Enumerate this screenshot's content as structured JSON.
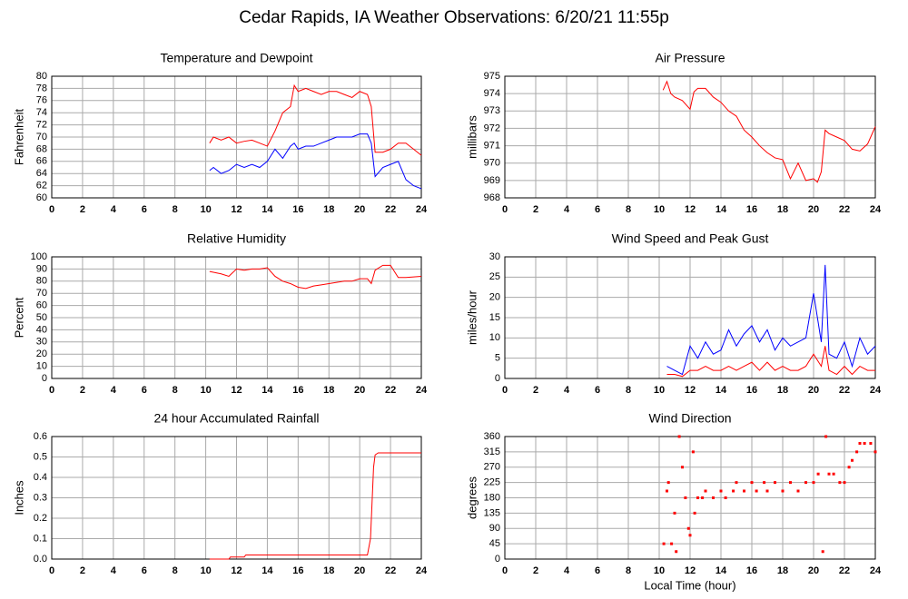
{
  "title": "Cedar Rapids, IA Weather Observations: 6/20/21 11:55p",
  "chart_data": [
    {
      "type": "line",
      "title": "Temperature and Dewpoint",
      "ylabel": "Fahrenheit",
      "xlim": [
        0,
        24
      ],
      "xticks": [
        0,
        2,
        4,
        6,
        8,
        10,
        12,
        14,
        16,
        18,
        20,
        22,
        24
      ],
      "ylim": [
        60,
        80
      ],
      "yticks": [
        60,
        62,
        64,
        66,
        68,
        70,
        72,
        74,
        76,
        78,
        80
      ],
      "grid": true,
      "x": [
        10.25,
        10.5,
        11,
        11.5,
        12,
        12.5,
        13,
        13.5,
        14,
        14.5,
        15,
        15.5,
        15.75,
        16,
        16.5,
        17,
        17.5,
        18,
        18.5,
        19,
        19.5,
        20,
        20.5,
        20.75,
        21,
        21.5,
        22,
        22.5,
        23,
        23.5,
        24
      ],
      "series": [
        {
          "color": "#ff0000",
          "values": [
            69,
            70,
            69.5,
            70,
            69,
            69.3,
            69.5,
            69,
            68.5,
            71,
            74,
            75,
            78.5,
            77.5,
            78,
            77.5,
            77,
            77.5,
            77.5,
            77,
            76.5,
            77.5,
            77,
            75,
            67.5,
            67.5,
            68,
            69,
            69,
            68,
            67
          ]
        },
        {
          "color": "#0000ff",
          "values": [
            64.5,
            65,
            64,
            64.5,
            65.5,
            65,
            65.5,
            65,
            66,
            68,
            66.5,
            68.5,
            69,
            68,
            68.5,
            68.5,
            69,
            69.5,
            70,
            70,
            70,
            70.5,
            70.5,
            69,
            63.5,
            65,
            65.5,
            66,
            63,
            62,
            61.5
          ]
        }
      ]
    },
    {
      "type": "line",
      "title": "Air Pressure",
      "ylabel": "millibars",
      "xlim": [
        0,
        24
      ],
      "xticks": [
        0,
        2,
        4,
        6,
        8,
        10,
        12,
        14,
        16,
        18,
        20,
        22,
        24
      ],
      "ylim": [
        968,
        975
      ],
      "yticks": [
        968,
        969,
        970,
        971,
        972,
        973,
        974,
        975
      ],
      "grid": true,
      "x": [
        10.25,
        10.5,
        10.75,
        11,
        11.5,
        12,
        12.25,
        12.5,
        13,
        13.5,
        14,
        14.5,
        15,
        15.5,
        16,
        16.5,
        17,
        17.5,
        18,
        18.5,
        19,
        19.5,
        20,
        20.25,
        20.5,
        20.75,
        21,
        21.5,
        22,
        22.5,
        23,
        23.5,
        24
      ],
      "series": [
        {
          "color": "#ff0000",
          "values": [
            974.2,
            974.7,
            974,
            973.8,
            973.6,
            973.1,
            974.1,
            974.3,
            974.3,
            973.8,
            973.5,
            973,
            972.7,
            971.9,
            971.5,
            971,
            970.6,
            970.3,
            970.2,
            969.1,
            970,
            969,
            969.1,
            968.9,
            969.5,
            971.9,
            971.7,
            971.5,
            971.3,
            970.8,
            970.7,
            971.1,
            972.1
          ]
        }
      ]
    },
    {
      "type": "line",
      "title": "Relative Humidity",
      "ylabel": "Percent",
      "xlim": [
        0,
        24
      ],
      "xticks": [
        0,
        2,
        4,
        6,
        8,
        10,
        12,
        14,
        16,
        18,
        20,
        22,
        24
      ],
      "ylim": [
        0,
        100
      ],
      "yticks": [
        0,
        10,
        20,
        30,
        40,
        50,
        60,
        70,
        80,
        90,
        100
      ],
      "grid": true,
      "x": [
        10.25,
        11,
        11.5,
        12,
        12.5,
        13,
        13.5,
        14,
        14.5,
        15,
        15.5,
        16,
        16.5,
        17,
        17.5,
        18,
        18.5,
        19,
        19.5,
        20,
        20.5,
        20.75,
        21,
        21.5,
        22,
        22.5,
        23,
        24
      ],
      "series": [
        {
          "color": "#ff0000",
          "values": [
            88,
            86,
            84,
            90,
            89,
            90,
            90,
            91,
            84,
            80,
            78,
            75,
            74,
            76,
            77,
            78,
            79,
            80,
            80,
            82,
            82,
            78,
            89,
            93,
            93,
            83,
            83,
            84
          ]
        }
      ]
    },
    {
      "type": "line",
      "title": "Wind Speed and Peak Gust",
      "ylabel": "miles/hour",
      "xlim": [
        0,
        24
      ],
      "xticks": [
        0,
        2,
        4,
        6,
        8,
        10,
        12,
        14,
        16,
        18,
        20,
        22,
        24
      ],
      "ylim": [
        0,
        30
      ],
      "yticks": [
        0,
        5,
        10,
        15,
        20,
        25,
        30
      ],
      "grid": true,
      "x": [
        10.5,
        11,
        11.5,
        12,
        12.5,
        13,
        13.5,
        14,
        14.5,
        15,
        15.5,
        16,
        16.5,
        17,
        17.5,
        18,
        18.5,
        19,
        19.5,
        20,
        20.5,
        20.75,
        21,
        21.5,
        22,
        22.5,
        23,
        23.5,
        24
      ],
      "series": [
        {
          "color": "#0000ff",
          "values": [
            3,
            2,
            1,
            8,
            5,
            9,
            6,
            7,
            12,
            8,
            11,
            13,
            9,
            12,
            7,
            10,
            8,
            9,
            10,
            21,
            9,
            28,
            6,
            5,
            9,
            3,
            10,
            6,
            8
          ]
        },
        {
          "color": "#ff0000",
          "values": [
            1,
            1,
            0.5,
            2,
            2,
            3,
            2,
            2,
            3,
            2,
            3,
            4,
            2,
            4,
            2,
            3,
            2,
            2,
            3,
            6,
            3,
            8,
            2,
            1,
            3,
            1,
            3,
            2,
            2
          ]
        }
      ]
    },
    {
      "type": "line",
      "title": "24 hour Accumulated Rainfall",
      "ylabel": "Inches",
      "xlim": [
        0,
        24
      ],
      "xticks": [
        0,
        2,
        4,
        6,
        8,
        10,
        12,
        14,
        16,
        18,
        20,
        22,
        24
      ],
      "ylim": [
        0,
        0.6
      ],
      "yticks": [
        {
          "value": 0,
          "label": "0.0"
        },
        0.1,
        0.2,
        0.3,
        0.4,
        0.5,
        0.6
      ],
      "grid": true,
      "x": [
        10.25,
        11.5,
        11.6,
        12.5,
        12.6,
        20.5,
        20.7,
        20.9,
        21,
        21.2,
        24
      ],
      "series": [
        {
          "color": "#ff0000",
          "values": [
            0,
            0,
            0.01,
            0.01,
            0.02,
            0.02,
            0.1,
            0.45,
            0.51,
            0.52,
            0.52
          ]
        }
      ]
    },
    {
      "type": "scatter",
      "title": "Wind Direction",
      "ylabel": "degrees",
      "xlabel": "Local Time (hour)",
      "xlim": [
        0,
        24
      ],
      "xticks": [
        0,
        2,
        4,
        6,
        8,
        10,
        12,
        14,
        16,
        18,
        20,
        22,
        24
      ],
      "ylim": [
        0,
        360
      ],
      "yticks": [
        0,
        45,
        90,
        135,
        180,
        225,
        270,
        315,
        360
      ],
      "grid": true,
      "x": [
        10.3,
        10.5,
        10.6,
        10.8,
        11,
        11.1,
        11.3,
        11.5,
        11.7,
        11.9,
        12,
        12.2,
        12.3,
        12.5,
        12.8,
        13,
        13.5,
        14,
        14.3,
        14.8,
        15,
        15.5,
        16,
        16.3,
        16.8,
        17,
        17.5,
        18,
        18.5,
        19,
        19.5,
        20,
        20.3,
        20.6,
        20.8,
        21,
        21.3,
        21.7,
        22,
        22.3,
        22.5,
        22.8,
        23,
        23.3,
        23.7,
        24
      ],
      "series": [
        {
          "color": "#ff0000",
          "values": [
            45,
            200,
            225,
            45,
            135,
            22,
            360,
            270,
            180,
            90,
            70,
            315,
            135,
            180,
            180,
            200,
            180,
            200,
            180,
            200,
            225,
            200,
            225,
            200,
            225,
            200,
            225,
            200,
            225,
            200,
            225,
            225,
            250,
            22,
            360,
            250,
            250,
            225,
            225,
            270,
            290,
            315,
            340,
            340,
            340,
            315
          ]
        }
      ]
    }
  ]
}
